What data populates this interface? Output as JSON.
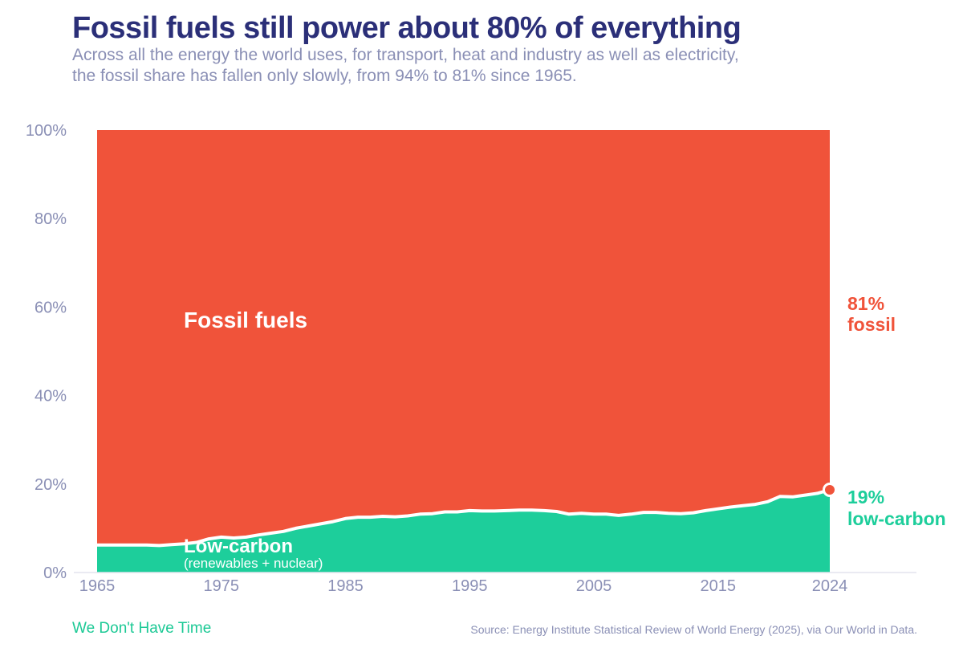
{
  "title": "Fossil fuels still power about 80% of everything",
  "subtitle": "Across all the energy the world uses, for transport, heat and industry as well as electricity, the fossil share has fallen only slowly, from 94% to 81% since 1965.",
  "footer": {
    "brand": "We Don't Have Time",
    "source": "Source: Energy Institute Statistical Review of World Energy (2025), via Our World in Data."
  },
  "colors": {
    "fossil": "#f0533a",
    "low_carbon": "#1dce9b",
    "text_axis": "#8a8fb5",
    "title": "#2b2f78",
    "line": "#ffffff"
  },
  "chart_data": {
    "type": "area",
    "stacked": true,
    "x": [
      1965,
      1966,
      1967,
      1968,
      1969,
      1970,
      1971,
      1972,
      1973,
      1974,
      1975,
      1976,
      1977,
      1978,
      1979,
      1980,
      1981,
      1982,
      1983,
      1984,
      1985,
      1986,
      1987,
      1988,
      1989,
      1990,
      1991,
      1992,
      1993,
      1994,
      1995,
      1996,
      1997,
      1998,
      1999,
      2000,
      2001,
      2002,
      2003,
      2004,
      2005,
      2006,
      2007,
      2008,
      2009,
      2010,
      2011,
      2012,
      2013,
      2014,
      2015,
      2016,
      2017,
      2018,
      2019,
      2020,
      2021,
      2022,
      2023,
      2024
    ],
    "series": [
      {
        "name": "Low-carbon",
        "values": [
          6.2,
          6.2,
          6.2,
          6.2,
          6.2,
          6.1,
          6.3,
          6.5,
          6.8,
          7.6,
          8.0,
          7.8,
          8.0,
          8.5,
          8.9,
          9.3,
          10.0,
          10.5,
          11.0,
          11.5,
          12.2,
          12.5,
          12.5,
          12.7,
          12.6,
          12.8,
          13.2,
          13.3,
          13.7,
          13.7,
          14.0,
          13.9,
          13.9,
          14.0,
          14.1,
          14.1,
          14.0,
          13.8,
          13.2,
          13.4,
          13.2,
          13.2,
          12.9,
          13.2,
          13.6,
          13.6,
          13.4,
          13.3,
          13.5,
          14.0,
          14.4,
          14.8,
          15.1,
          15.4,
          16.0,
          17.2,
          17.1,
          17.5,
          17.9,
          18.7
        ]
      },
      {
        "name": "Fossil fuels",
        "values": [
          93.8,
          93.8,
          93.8,
          93.8,
          93.8,
          93.9,
          93.7,
          93.5,
          93.2,
          92.4,
          92.0,
          92.2,
          92.0,
          91.5,
          91.1,
          90.7,
          90.0,
          89.5,
          89.0,
          88.5,
          87.8,
          87.5,
          87.5,
          87.3,
          87.4,
          87.2,
          86.8,
          86.7,
          86.3,
          86.3,
          86.0,
          86.1,
          86.1,
          86.0,
          85.9,
          85.9,
          86.0,
          86.2,
          86.8,
          86.6,
          86.8,
          86.8,
          87.1,
          86.8,
          86.4,
          86.4,
          86.6,
          86.7,
          86.5,
          86.0,
          85.6,
          85.2,
          84.9,
          84.6,
          84.0,
          82.8,
          82.9,
          82.5,
          82.1,
          81.3
        ]
      }
    ],
    "x_ticks": [
      "1965",
      "1975",
      "1985",
      "1995",
      "2005",
      "2015",
      "2024"
    ],
    "y_ticks": [
      "0%",
      "20%",
      "40%",
      "60%",
      "80%",
      "100%"
    ],
    "ylim": [
      0,
      100
    ],
    "xlim": [
      1965,
      2024
    ],
    "annotations": {
      "fossil_area_label": "Fossil fuels",
      "low_carbon_area_label": "Low-carbon",
      "low_carbon_area_sublabel": "(renewables + nuclear)",
      "end_fossil_value": "81%",
      "end_fossil_word": "fossil",
      "end_low_carbon_value": "19%",
      "end_low_carbon_word": "low-carbon"
    }
  }
}
